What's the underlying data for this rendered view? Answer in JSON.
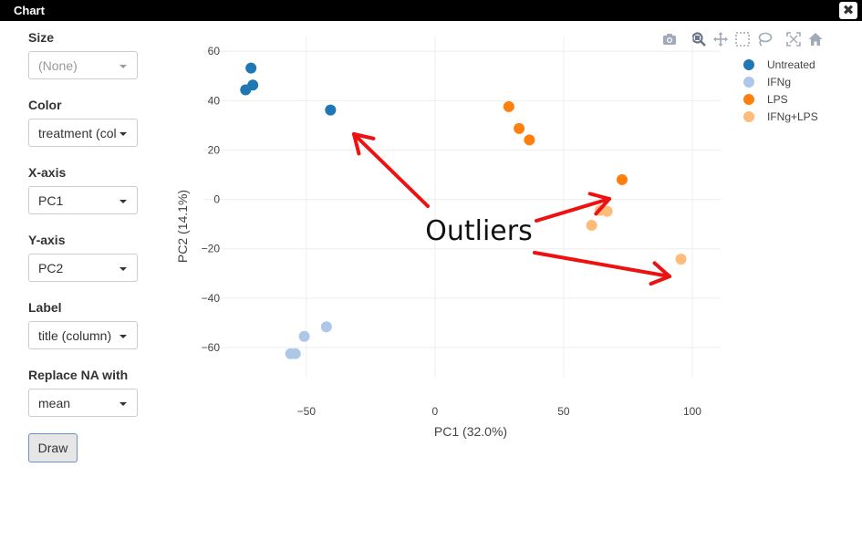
{
  "window": {
    "title": "Chart",
    "close_label": "✖"
  },
  "sidebar": {
    "size": {
      "label": "Size",
      "value": "(None)"
    },
    "color": {
      "label": "Color",
      "value": "treatment (col"
    },
    "xaxis": {
      "label": "X-axis",
      "value": "PC1"
    },
    "yaxis": {
      "label": "Y-axis",
      "value": "PC2"
    },
    "label": {
      "label": "Label",
      "value": "title (column)"
    },
    "replace_na": {
      "label": "Replace NA with",
      "value": "mean"
    },
    "draw_label": "Draw"
  },
  "modebar": {
    "icons": [
      "camera-icon",
      "zoom-icon",
      "pan-icon",
      "box-select-icon",
      "lasso-select-icon",
      "autoscale-icon",
      "home-icon"
    ],
    "icon_color": "#a0aab8",
    "active_color": "#6b7789"
  },
  "annotation": {
    "text": "Outliers",
    "arrow_color": "#ee1111"
  },
  "chart_data": {
    "type": "scatter",
    "xlabel": "PC1 (32.0%)",
    "ylabel": "PC2 (14.1%)",
    "xlim": [
      -90,
      111
    ],
    "ylim": [
      -70,
      66
    ],
    "xticks": [
      -50,
      0,
      50,
      100
    ],
    "yticks": [
      -60,
      -40,
      -20,
      0,
      20,
      40,
      60
    ],
    "xtick_labels": [
      "−50",
      "0",
      "50",
      "100"
    ],
    "ytick_labels": [
      "−60",
      "−40",
      "−20",
      "0",
      "20",
      "40",
      "60"
    ],
    "grid": true,
    "legend_position": "right",
    "series": [
      {
        "name": "Untreated",
        "color": "#1f77b4",
        "x": [
          -71.5,
          -70.8,
          -73.6,
          -40.6
        ],
        "y": [
          53.2,
          46.3,
          44.4,
          36.2
        ]
      },
      {
        "name": "IFNg",
        "color": "#aec7e8",
        "x": [
          -42.2,
          -50.8,
          -56.1,
          -54.3
        ],
        "y": [
          -51.6,
          -55.5,
          -62.5,
          -62.5
        ]
      },
      {
        "name": "LPS",
        "color": "#ff7f0e",
        "x": [
          28.7,
          32.7,
          36.7,
          72.7
        ],
        "y": [
          37.6,
          28.7,
          24.1,
          8.0
        ]
      },
      {
        "name": "IFNg+LPS",
        "color": "#ffbb78",
        "x": [
          64.3,
          66.9,
          60.9,
          95.6
        ],
        "y": [
          -4.4,
          -4.8,
          -10.5,
          -24.2
        ]
      }
    ]
  }
}
